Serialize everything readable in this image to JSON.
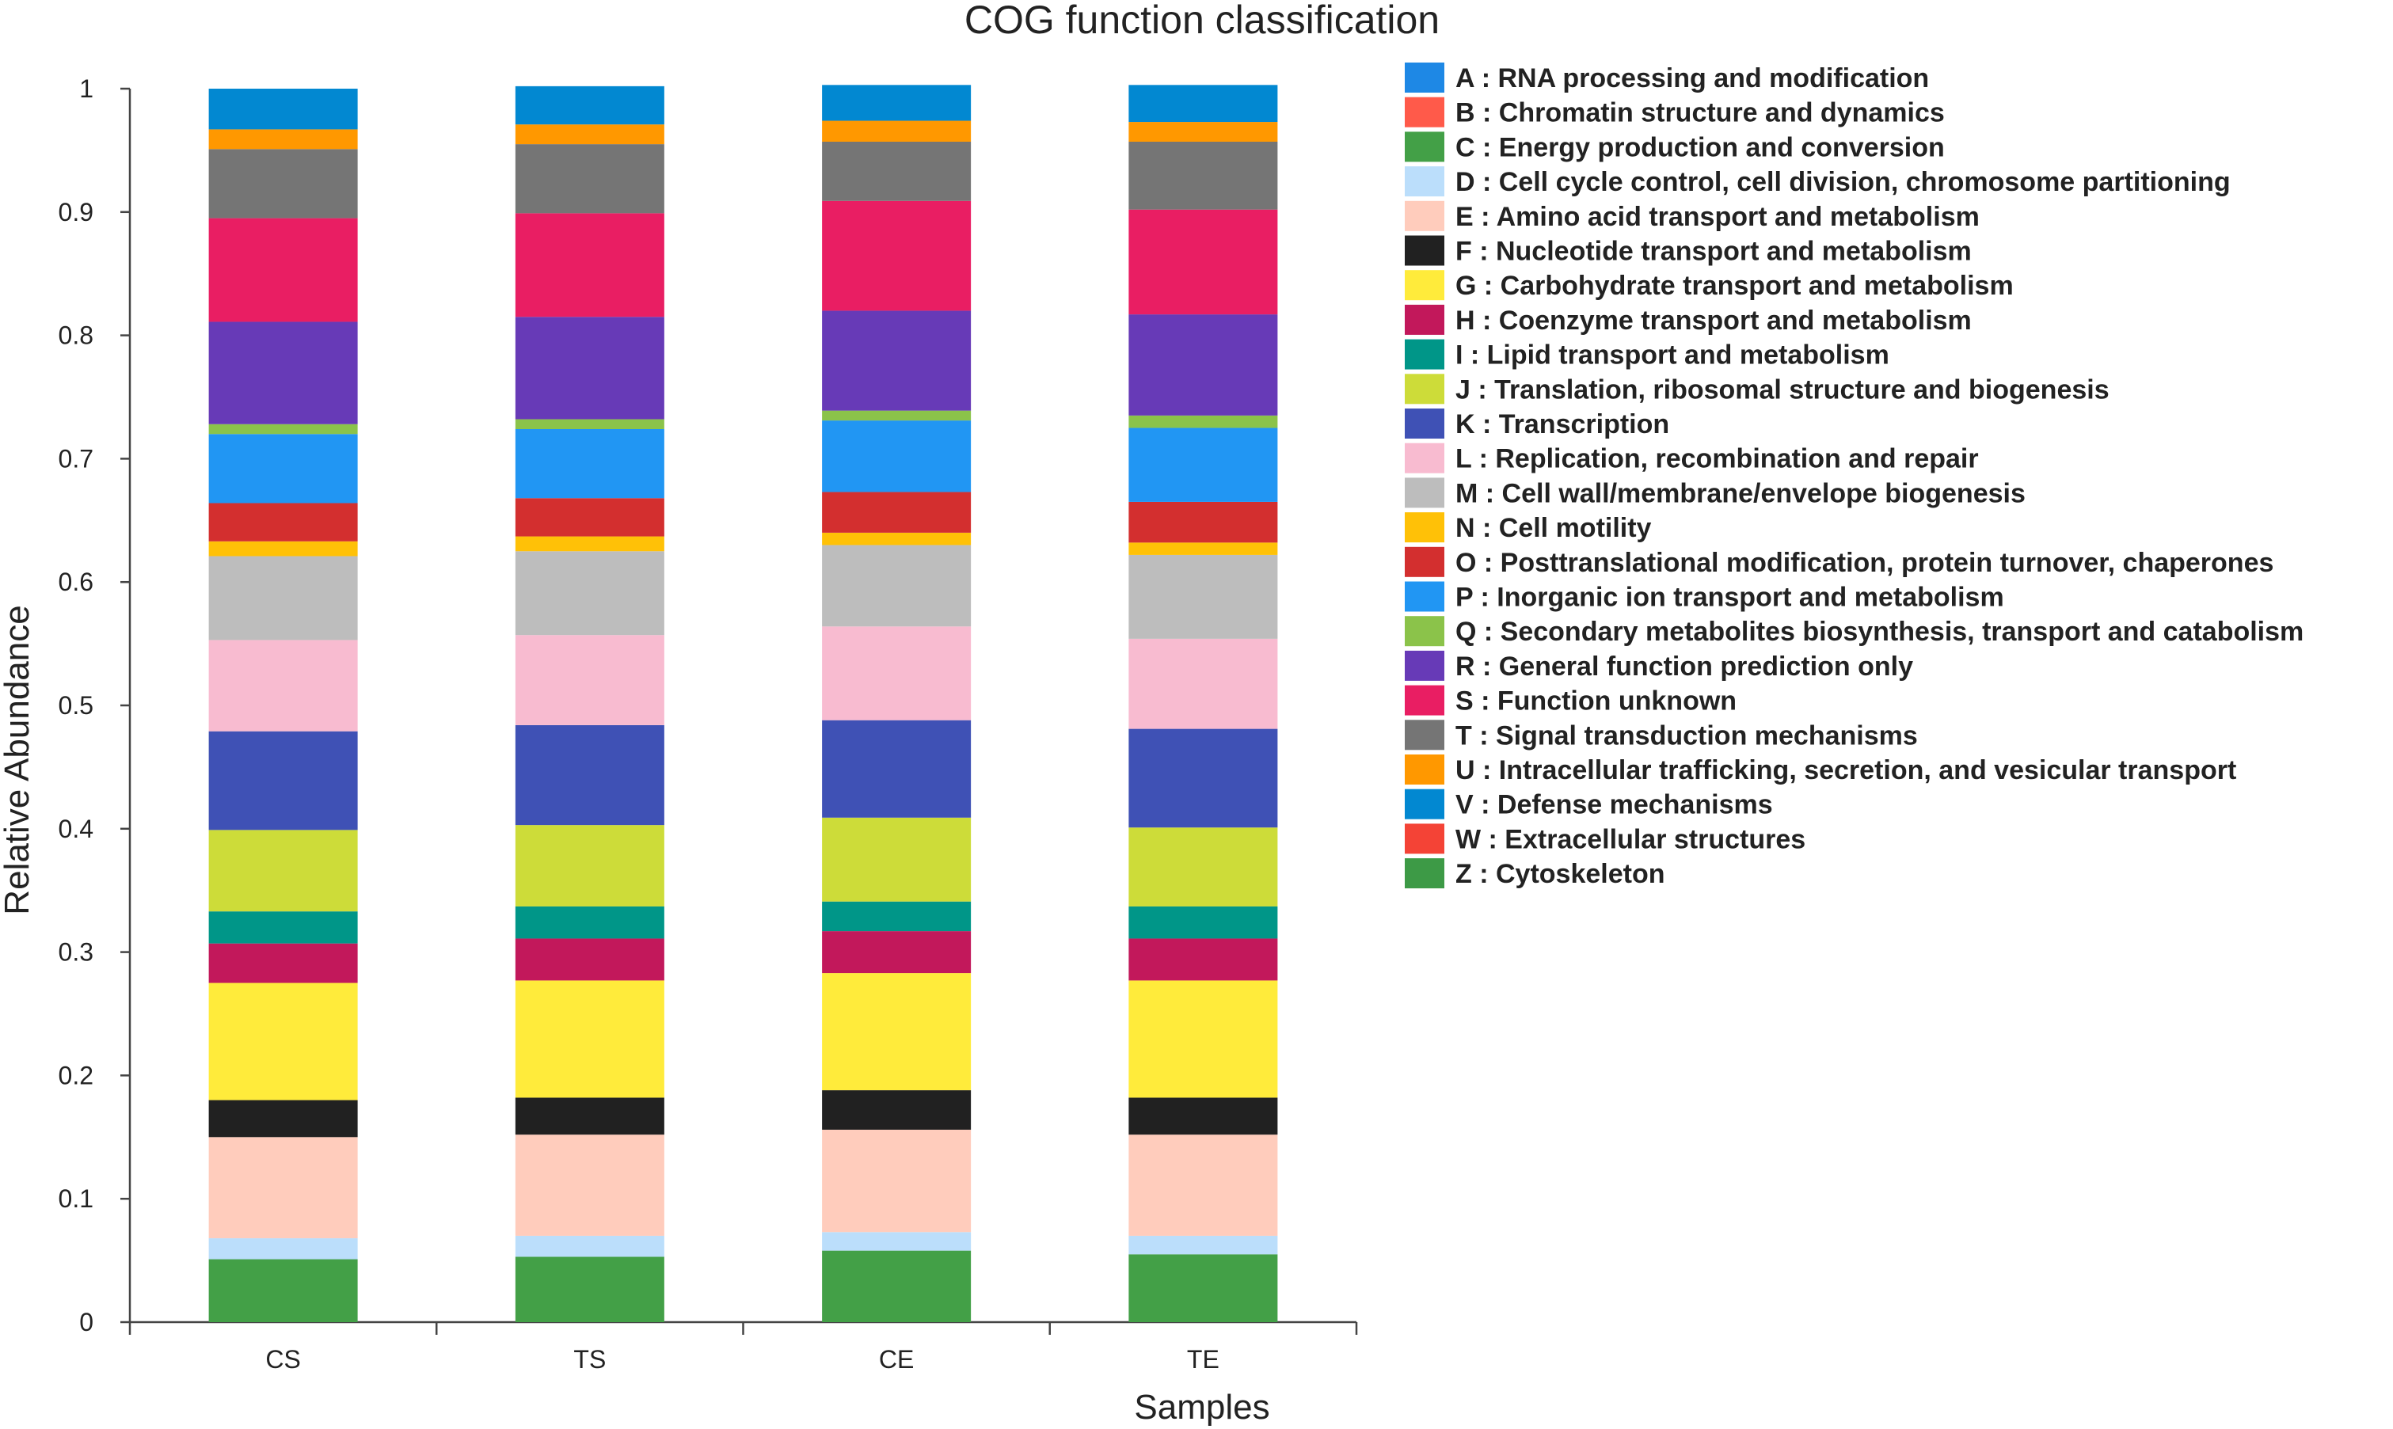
{
  "chart_data": {
    "type": "bar",
    "stacked": true,
    "title": "COG function classification",
    "xlabel": "Samples",
    "ylabel": "Relative Abundance",
    "ylim": [
      0,
      1
    ],
    "yticks": [
      "0",
      "0.1",
      "0.2",
      "0.3",
      "0.4",
      "0.5",
      "0.6",
      "0.7",
      "0.8",
      "0.9",
      "1"
    ],
    "categories": [
      "CS",
      "TS",
      "CE",
      "TE"
    ],
    "legend_position": "right",
    "series": [
      {
        "code": "Z",
        "name": "Cytoskeleton",
        "color": "#3d9a46",
        "values": [
          0.0,
          0.0,
          0.0,
          0.0
        ]
      },
      {
        "code": "W",
        "name": "Extracellular structures",
        "color": "#f44336",
        "values": [
          0.0,
          0.0,
          0.0,
          0.0
        ]
      },
      {
        "code": "C",
        "name": "Energy production and conversion",
        "color": "#43a047",
        "values": [
          0.051,
          0.053,
          0.058,
          0.055
        ]
      },
      {
        "code": "D",
        "name": "Cell cycle control, cell division, chromosome partitioning",
        "color": "#bbdefb",
        "values": [
          0.017,
          0.017,
          0.015,
          0.015
        ]
      },
      {
        "code": "E",
        "name": "Amino acid transport and metabolism",
        "color": "#ffccbc",
        "values": [
          0.082,
          0.082,
          0.083,
          0.082
        ]
      },
      {
        "code": "F",
        "name": "Nucleotide transport and metabolism",
        "color": "#212121",
        "values": [
          0.03,
          0.03,
          0.032,
          0.03
        ]
      },
      {
        "code": "G",
        "name": "Carbohydrate transport and metabolism",
        "color": "#ffeb3b",
        "values": [
          0.095,
          0.095,
          0.095,
          0.095
        ]
      },
      {
        "code": "H",
        "name": "Coenzyme transport and metabolism",
        "color": "#c2185b",
        "values": [
          0.032,
          0.034,
          0.034,
          0.034
        ]
      },
      {
        "code": "I",
        "name": "Lipid transport and metabolism",
        "color": "#009688",
        "values": [
          0.026,
          0.026,
          0.024,
          0.026
        ]
      },
      {
        "code": "J",
        "name": "Translation, ribosomal structure and biogenesis",
        "color": "#cddc39",
        "values": [
          0.066,
          0.066,
          0.068,
          0.064
        ]
      },
      {
        "code": "K",
        "name": "Transcription",
        "color": "#3f51b5",
        "values": [
          0.08,
          0.081,
          0.079,
          0.08
        ]
      },
      {
        "code": "L",
        "name": "Replication, recombination and repair",
        "color": "#f8bbd0",
        "values": [
          0.074,
          0.073,
          0.076,
          0.073
        ]
      },
      {
        "code": "M",
        "name": "Cell wall/membrane/envelope biogenesis",
        "color": "#bdbdbd",
        "values": [
          0.068,
          0.068,
          0.066,
          0.068
        ]
      },
      {
        "code": "N",
        "name": "Cell motility",
        "color": "#ffc107",
        "values": [
          0.012,
          0.012,
          0.01,
          0.01
        ]
      },
      {
        "code": "O",
        "name": "Posttranslational modification, protein turnover, chaperones",
        "color": "#d32f2f",
        "values": [
          0.031,
          0.031,
          0.033,
          0.033
        ]
      },
      {
        "code": "P",
        "name": "Inorganic ion transport and metabolism",
        "color": "#2196f3",
        "values": [
          0.056,
          0.056,
          0.058,
          0.06
        ]
      },
      {
        "code": "Q",
        "name": "Secondary metabolites biosynthesis, transport and catabolism",
        "color": "#8bc34a",
        "values": [
          0.008,
          0.008,
          0.008,
          0.01
        ]
      },
      {
        "code": "R",
        "name": "General function prediction only",
        "color": "#673ab7",
        "values": [
          0.083,
          0.083,
          0.081,
          0.082
        ]
      },
      {
        "code": "S",
        "name": "Function unknown",
        "color": "#e91e63",
        "values": [
          0.084,
          0.084,
          0.089,
          0.085
        ]
      },
      {
        "code": "T",
        "name": "Signal transduction mechanisms",
        "color": "#757575",
        "values": [
          0.056,
          0.056,
          0.048,
          0.055
        ]
      },
      {
        "code": "U",
        "name": "Intracellular trafficking, secretion, and vesicular transport",
        "color": "#ff9800",
        "values": [
          0.016,
          0.016,
          0.017,
          0.016
        ]
      },
      {
        "code": "V",
        "name": "Defense mechanisms",
        "color": "#0288d1",
        "values": [
          0.033,
          0.031,
          0.029,
          0.03
        ]
      },
      {
        "code": "B",
        "name": "Chromatin structure and dynamics",
        "color": "#ff5a4a",
        "values": [
          0.0,
          0.0,
          0.0,
          0.0
        ]
      },
      {
        "code": "A",
        "name": "RNA processing and modification",
        "color": "#1e88e5",
        "values": [
          0.0,
          0.0,
          0.0,
          0.0
        ]
      }
    ],
    "legend": [
      {
        "label": "A : RNA processing and modification",
        "color": "#1e88e5"
      },
      {
        "label": "B : Chromatin structure and dynamics",
        "color": "#ff5a4a"
      },
      {
        "label": "C : Energy production and conversion",
        "color": "#43a047"
      },
      {
        "label": "D : Cell cycle control, cell division, chromosome partitioning",
        "color": "#bbdefb"
      },
      {
        "label": "E : Amino acid transport and metabolism",
        "color": "#ffccbc"
      },
      {
        "label": "F : Nucleotide transport and metabolism",
        "color": "#212121"
      },
      {
        "label": "G : Carbohydrate transport and metabolism",
        "color": "#ffeb3b"
      },
      {
        "label": "H : Coenzyme transport and metabolism",
        "color": "#c2185b"
      },
      {
        "label": "I : Lipid transport and metabolism",
        "color": "#009688"
      },
      {
        "label": "J : Translation, ribosomal structure and biogenesis",
        "color": "#cddc39"
      },
      {
        "label": "K : Transcription",
        "color": "#3f51b5"
      },
      {
        "label": "L : Replication, recombination and repair",
        "color": "#f8bbd0"
      },
      {
        "label": "M : Cell wall/membrane/envelope biogenesis",
        "color": "#bdbdbd"
      },
      {
        "label": "N : Cell motility",
        "color": "#ffc107"
      },
      {
        "label": "O : Posttranslational modification, protein turnover, chaperones",
        "color": "#d32f2f"
      },
      {
        "label": "P : Inorganic ion transport and metabolism",
        "color": "#2196f3"
      },
      {
        "label": "Q : Secondary metabolites biosynthesis, transport and catabolism",
        "color": "#8bc34a"
      },
      {
        "label": "R : General function prediction only",
        "color": "#673ab7"
      },
      {
        "label": "S : Function unknown",
        "color": "#e91e63"
      },
      {
        "label": "T : Signal transduction mechanisms",
        "color": "#757575"
      },
      {
        "label": "U : Intracellular trafficking, secretion, and vesicular transport",
        "color": "#ff9800"
      },
      {
        "label": "V : Defense mechanisms",
        "color": "#0288d1"
      },
      {
        "label": "W : Extracellular structures",
        "color": "#f44336"
      },
      {
        "label": "Z : Cytoskeleton",
        "color": "#3d9a46"
      }
    ]
  }
}
